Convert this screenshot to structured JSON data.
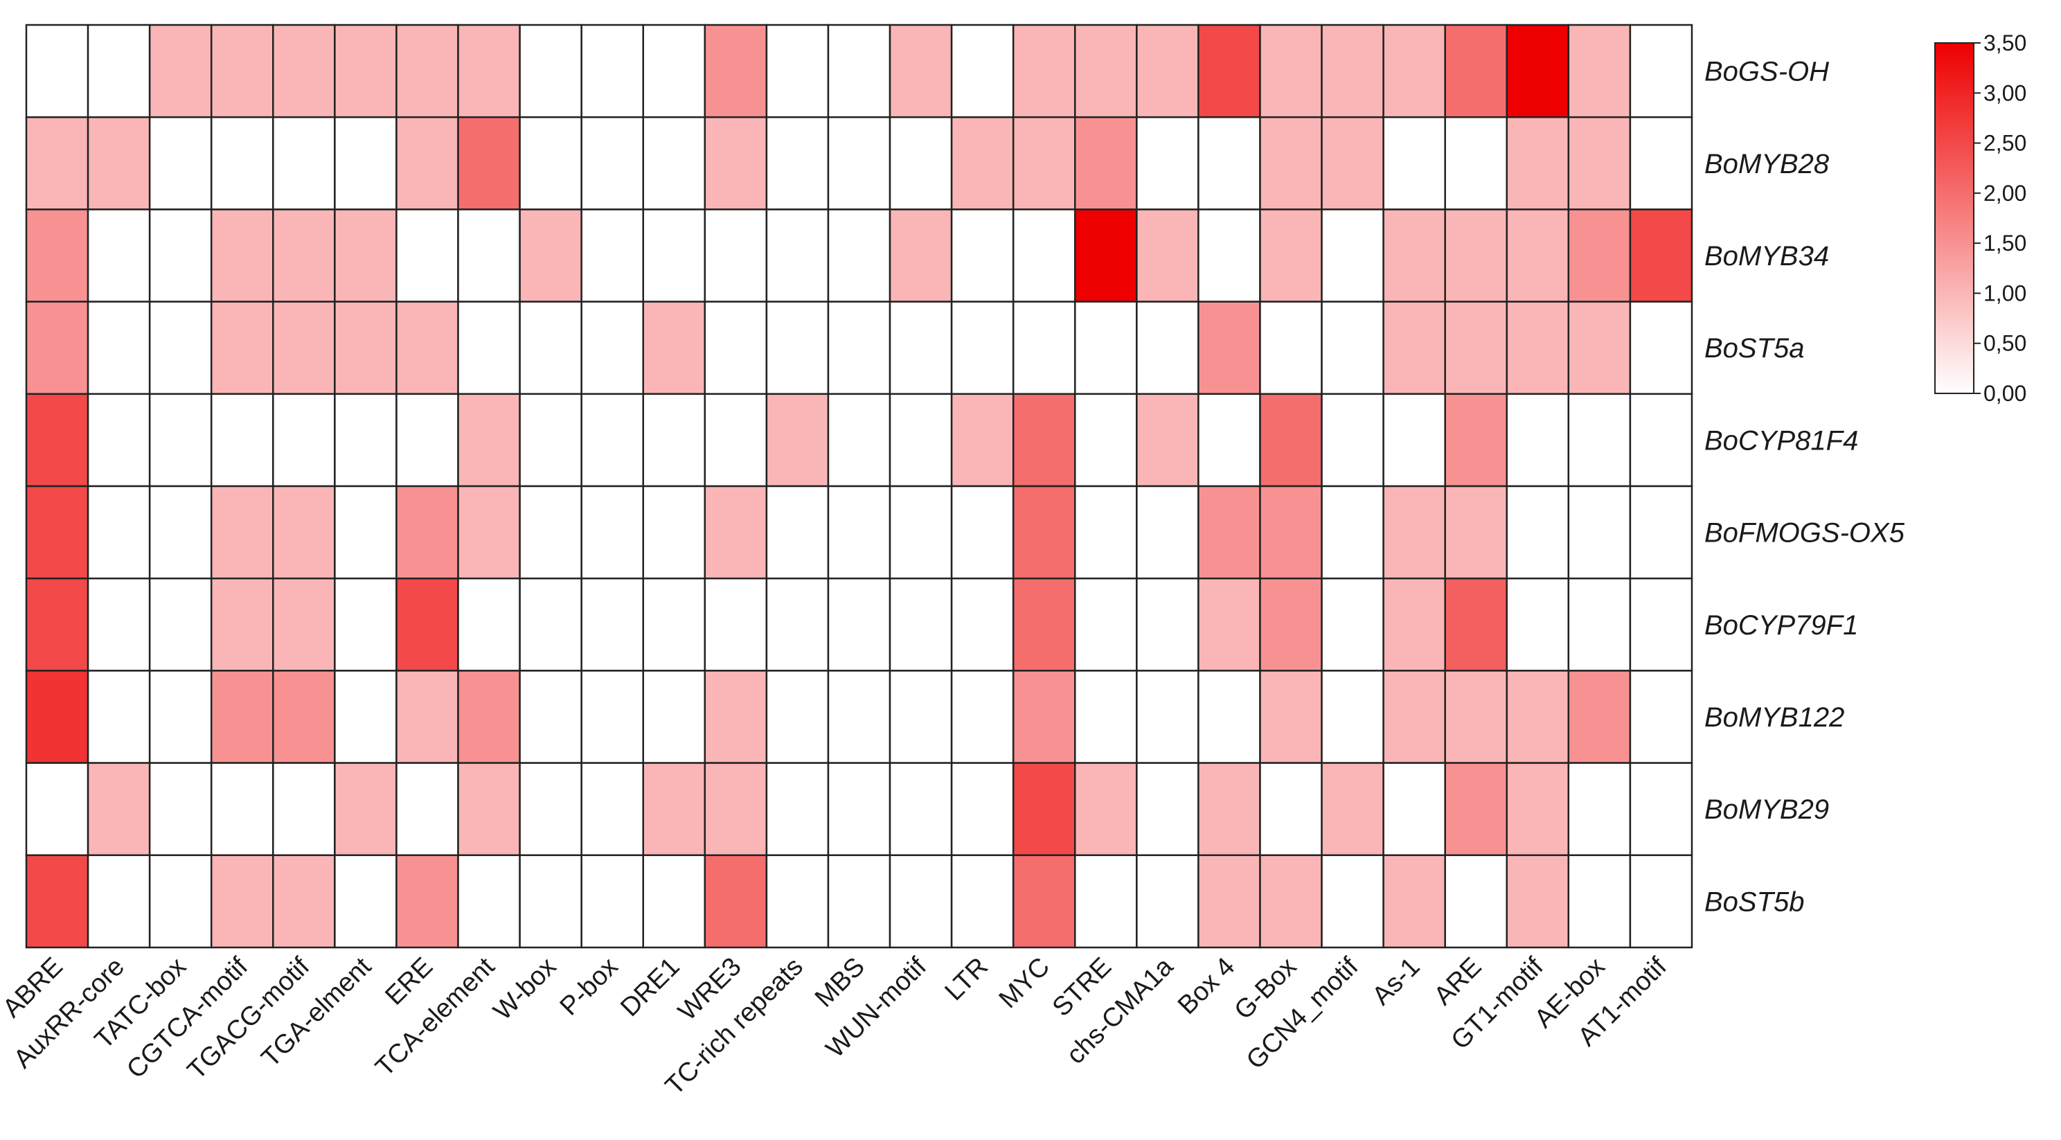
{
  "chart_data": {
    "type": "heatmap",
    "title": "",
    "xlabel": "",
    "ylabel": "",
    "columns": [
      "ABRE",
      "AuxRR-core",
      "TATC-box",
      "CGTCA-motif",
      "TGACG-motif",
      "TGA-elment",
      "ERE",
      "TCA-element",
      "W-box",
      "P-box",
      "DRE1",
      "WRE3",
      "TC-rich repeats",
      "MBS",
      "WUN-motif",
      "LTR",
      "MYC",
      "STRE",
      "chs-CMA1a",
      "Box 4",
      "G-Box",
      "GCN4_motif",
      "As-1",
      "ARE",
      "GT1-motif",
      "AE-box",
      "AT1-motif"
    ],
    "rows": [
      "BoGS-OH",
      "BoMYB28",
      "BoMYB34",
      "BoST5a",
      "BoCYP81F4",
      "BoFMOGS-OX5",
      "BoCYP79F1",
      "BoMYB122",
      "BoMYB29",
      "BoST5b"
    ],
    "values": [
      [
        0,
        0,
        1,
        1,
        1,
        1,
        1,
        1,
        0,
        0,
        0,
        1.5,
        0,
        0,
        1,
        0,
        1,
        1,
        1,
        2.5,
        1,
        1,
        1,
        2,
        3.5,
        1,
        0
      ],
      [
        1,
        1,
        0,
        0,
        0,
        0,
        1,
        2,
        0,
        0,
        0,
        1,
        0,
        0,
        0,
        1,
        1,
        1.5,
        0,
        0,
        1,
        1,
        0,
        0,
        1,
        1,
        0
      ],
      [
        1.5,
        0,
        0,
        1,
        1,
        1,
        0,
        0,
        1,
        0,
        0,
        0,
        0,
        0,
        1,
        0,
        0,
        3.5,
        1,
        0,
        1,
        0,
        1,
        1,
        1,
        1.5,
        2.5
      ],
      [
        1.5,
        0,
        0,
        1,
        1,
        1,
        1,
        0,
        0,
        0,
        1,
        0,
        0,
        0,
        0,
        0,
        0,
        0,
        0,
        1.5,
        0,
        0,
        1,
        1,
        1,
        1,
        0
      ],
      [
        2.5,
        0,
        0,
        0,
        0,
        0,
        0,
        1,
        0,
        0,
        0,
        0,
        1,
        0,
        0,
        1,
        2,
        0,
        1,
        0,
        2,
        0,
        0,
        1.5,
        0,
        0,
        0
      ],
      [
        2.5,
        0,
        0,
        1,
        1,
        0,
        1.5,
        1,
        0,
        0,
        0,
        1,
        0,
        0,
        0,
        0,
        2,
        0,
        0,
        1.5,
        1.5,
        0,
        1,
        1,
        0,
        0,
        0
      ],
      [
        2.5,
        0,
        0,
        1,
        1,
        0,
        2.5,
        0,
        0,
        0,
        0,
        0,
        0,
        0,
        0,
        0,
        2,
        0,
        0,
        1,
        1.5,
        0,
        1,
        2.2,
        0,
        0,
        0
      ],
      [
        2.8,
        0,
        0,
        1.5,
        1.5,
        0,
        1,
        1.5,
        0,
        0,
        0,
        1,
        0,
        0,
        0,
        0,
        1.5,
        0,
        0,
        0,
        1,
        0,
        1,
        1,
        1,
        1.5,
        0
      ],
      [
        0,
        1,
        0,
        0,
        0,
        1,
        0,
        1,
        0,
        0,
        1,
        1,
        0,
        0,
        0,
        0,
        2.5,
        1,
        0,
        1,
        0,
        1,
        0,
        1.5,
        1,
        0,
        0
      ],
      [
        2.5,
        0,
        0,
        1,
        1,
        0,
        1.5,
        0,
        0,
        0,
        0,
        2,
        0,
        0,
        0,
        0,
        2,
        0,
        0,
        1,
        1,
        0,
        1,
        0,
        1,
        0,
        0
      ]
    ],
    "color_scale": {
      "min": 0,
      "max": 3.5,
      "low_color": "#ffffff",
      "high_color": "#ee0000",
      "ticks": [
        "0,00",
        "0,50",
        "1,00",
        "1,50",
        "2,00",
        "2,50",
        "3,00",
        "3,50"
      ],
      "placement": "top-right"
    },
    "grid": true
  }
}
